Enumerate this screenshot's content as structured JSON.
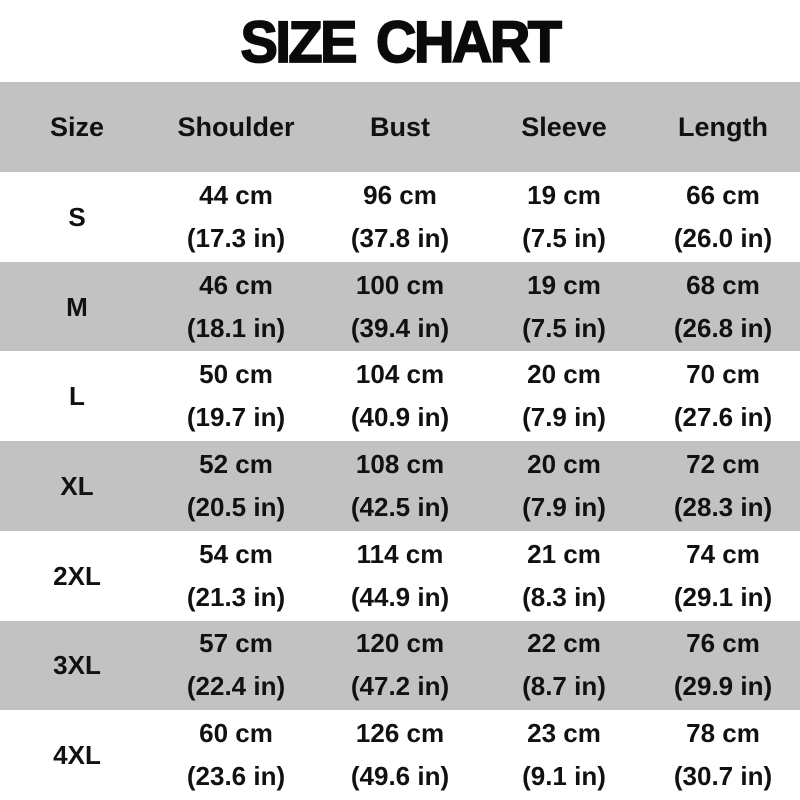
{
  "page_title": "SIZE CHART",
  "colors": {
    "row_gray": "#c2c2c2",
    "row_white": "#ffffff",
    "text": "#111111",
    "title_text": "#0a0a0a",
    "background": "#ffffff"
  },
  "table": {
    "columns": [
      "Size",
      "Shoulder",
      "Bust",
      "Sleeve",
      "Length"
    ],
    "rows": [
      {
        "size": "S",
        "shoulder": {
          "cm": "44 cm",
          "in": "(17.3 in)"
        },
        "bust": {
          "cm": "96 cm",
          "in": "(37.8 in)"
        },
        "sleeve": {
          "cm": "19 cm",
          "in": "(7.5 in)"
        },
        "length": {
          "cm": "66 cm",
          "in": "(26.0 in)"
        }
      },
      {
        "size": "M",
        "shoulder": {
          "cm": "46 cm",
          "in": "(18.1 in)"
        },
        "bust": {
          "cm": "100 cm",
          "in": "(39.4 in)"
        },
        "sleeve": {
          "cm": "19 cm",
          "in": "(7.5 in)"
        },
        "length": {
          "cm": "68 cm",
          "in": "(26.8 in)"
        }
      },
      {
        "size": "L",
        "shoulder": {
          "cm": "50 cm",
          "in": "(19.7 in)"
        },
        "bust": {
          "cm": "104 cm",
          "in": "(40.9 in)"
        },
        "sleeve": {
          "cm": "20 cm",
          "in": "(7.9 in)"
        },
        "length": {
          "cm": "70 cm",
          "in": "(27.6 in)"
        }
      },
      {
        "size": "XL",
        "shoulder": {
          "cm": "52 cm",
          "in": "(20.5 in)"
        },
        "bust": {
          "cm": "108 cm",
          "in": "(42.5 in)"
        },
        "sleeve": {
          "cm": "20 cm",
          "in": "(7.9 in)"
        },
        "length": {
          "cm": "72 cm",
          "in": "(28.3 in)"
        }
      },
      {
        "size": "2XL",
        "shoulder": {
          "cm": "54 cm",
          "in": "(21.3 in)"
        },
        "bust": {
          "cm": "114 cm",
          "in": "(44.9 in)"
        },
        "sleeve": {
          "cm": "21 cm",
          "in": "(8.3 in)"
        },
        "length": {
          "cm": "74 cm",
          "in": "(29.1 in)"
        }
      },
      {
        "size": "3XL",
        "shoulder": {
          "cm": "57 cm",
          "in": "(22.4 in)"
        },
        "bust": {
          "cm": "120 cm",
          "in": "(47.2 in)"
        },
        "sleeve": {
          "cm": "22 cm",
          "in": "(8.7 in)"
        },
        "length": {
          "cm": "76 cm",
          "in": "(29.9 in)"
        }
      },
      {
        "size": "4XL",
        "shoulder": {
          "cm": "60 cm",
          "in": "(23.6 in)"
        },
        "bust": {
          "cm": "126 cm",
          "in": "(49.6 in)"
        },
        "sleeve": {
          "cm": "23 cm",
          "in": "(9.1 in)"
        },
        "length": {
          "cm": "78 cm",
          "in": "(30.7 in)"
        }
      }
    ]
  },
  "chart_data": {
    "type": "table",
    "title": "SIZE CHART",
    "columns": [
      "Size",
      "Shoulder",
      "Bust",
      "Sleeve",
      "Length"
    ],
    "units": [
      "cm",
      "in"
    ],
    "rows": [
      {
        "size": "S",
        "shoulder_cm": 44,
        "shoulder_in": 17.3,
        "bust_cm": 96,
        "bust_in": 37.8,
        "sleeve_cm": 19,
        "sleeve_in": 7.5,
        "length_cm": 66,
        "length_in": 26.0
      },
      {
        "size": "M",
        "shoulder_cm": 46,
        "shoulder_in": 18.1,
        "bust_cm": 100,
        "bust_in": 39.4,
        "sleeve_cm": 19,
        "sleeve_in": 7.5,
        "length_cm": 68,
        "length_in": 26.8
      },
      {
        "size": "L",
        "shoulder_cm": 50,
        "shoulder_in": 19.7,
        "bust_cm": 104,
        "bust_in": 40.9,
        "sleeve_cm": 20,
        "sleeve_in": 7.9,
        "length_cm": 70,
        "length_in": 27.6
      },
      {
        "size": "XL",
        "shoulder_cm": 52,
        "shoulder_in": 20.5,
        "bust_cm": 108,
        "bust_in": 42.5,
        "sleeve_cm": 20,
        "sleeve_in": 7.9,
        "length_cm": 72,
        "length_in": 28.3
      },
      {
        "size": "2XL",
        "shoulder_cm": 54,
        "shoulder_in": 21.3,
        "bust_cm": 114,
        "bust_in": 44.9,
        "sleeve_cm": 21,
        "sleeve_in": 8.3,
        "length_cm": 74,
        "length_in": 29.1
      },
      {
        "size": "3XL",
        "shoulder_cm": 57,
        "shoulder_in": 22.4,
        "bust_cm": 120,
        "bust_in": 47.2,
        "sleeve_cm": 22,
        "sleeve_in": 8.7,
        "length_cm": 76,
        "length_in": 29.9
      },
      {
        "size": "4XL",
        "shoulder_cm": 60,
        "shoulder_in": 23.6,
        "bust_cm": 126,
        "bust_in": 49.6,
        "sleeve_cm": 23,
        "sleeve_in": 9.1,
        "length_cm": 78,
        "length_in": 30.7
      }
    ],
    "layout": {
      "header_background": "#c2c2c2",
      "alternating_rows": true,
      "grid": false
    }
  }
}
